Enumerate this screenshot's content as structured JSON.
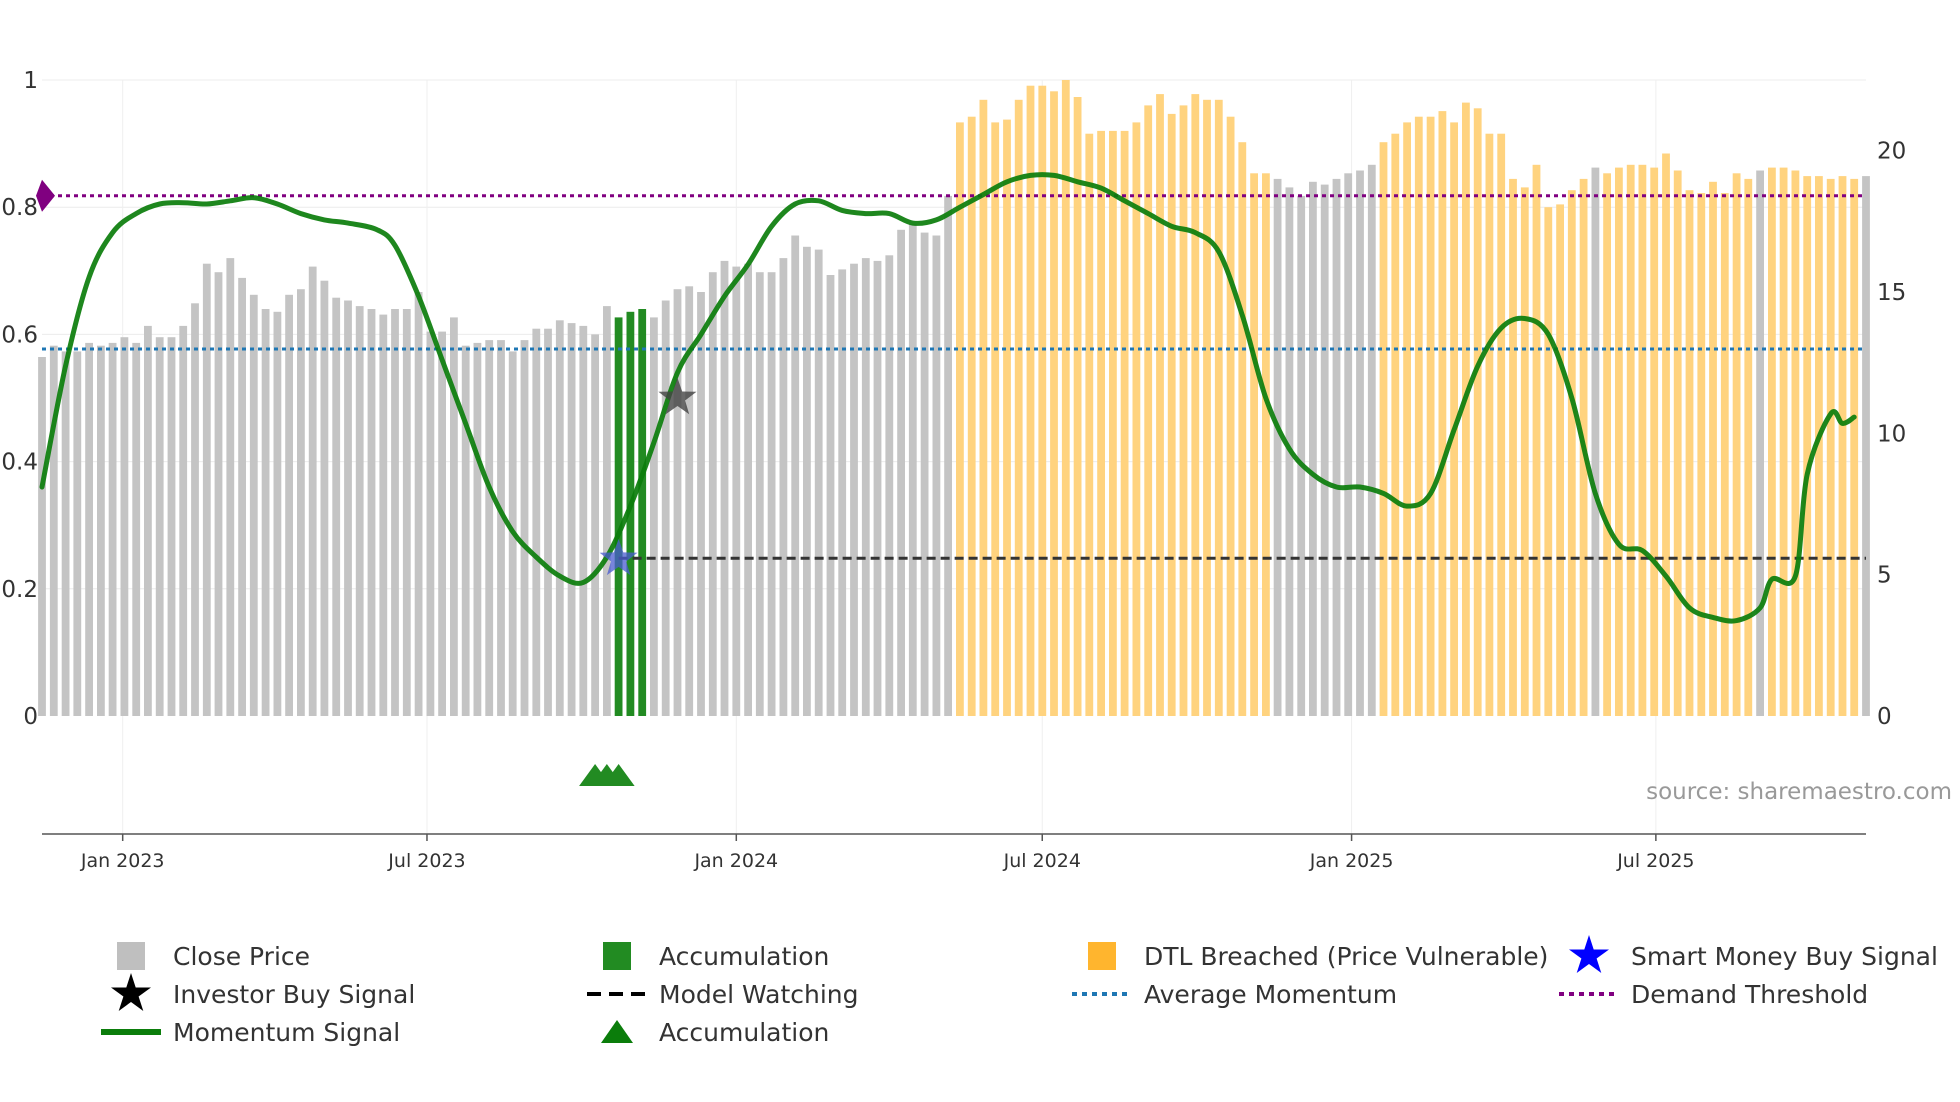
{
  "chart_data": {
    "type": "bar",
    "source": "source: sharemaestro.com",
    "left_axis": {
      "ylim": [
        0,
        1
      ],
      "ticks": [
        0,
        0.2,
        0.4,
        0.6,
        0.8,
        1
      ],
      "tick_labels": [
        "0",
        "0.2",
        "0.4",
        "0.6",
        "0.8",
        "1"
      ]
    },
    "right_axis": {
      "ylim": [
        0,
        22.5
      ],
      "ticks": [
        0,
        5,
        10,
        15,
        20
      ],
      "tick_labels": [
        "0",
        "5",
        "10",
        "15",
        "20"
      ]
    },
    "x_axis": {
      "start": "2022-11-14",
      "end": "2025-11-03",
      "ticks": [
        {
          "date": "2023-01-01",
          "label": "Jan 2023"
        },
        {
          "date": "2023-07-01",
          "label": "Jul 2023"
        },
        {
          "date": "2024-01-01",
          "label": "Jan 2024"
        },
        {
          "date": "2024-07-01",
          "label": "Jul 2024"
        },
        {
          "date": "2025-01-01",
          "label": "Jan 2025"
        },
        {
          "date": "2025-07-01",
          "label": "Jul 2025"
        }
      ]
    },
    "price_series": {
      "name": "Close Price",
      "unit": "right axis",
      "start": "2022-11-14",
      "interval_days": 7,
      "values": [
        12.7,
        13.1,
        12.9,
        12.9,
        13.2,
        13.1,
        13.2,
        13.4,
        13.2,
        13.8,
        13.4,
        13.4,
        13.8,
        14.6,
        16.0,
        15.7,
        16.2,
        15.5,
        14.9,
        14.4,
        14.3,
        14.9,
        15.1,
        15.9,
        15.4,
        14.8,
        14.7,
        14.5,
        14.4,
        14.2,
        14.4,
        14.4,
        15.0,
        13.6,
        13.6,
        14.1,
        13.1,
        13.2,
        13.3,
        13.3,
        12.9,
        13.3,
        13.7,
        13.7,
        14.0,
        13.9,
        13.8,
        13.5,
        14.5,
        14.1,
        14.3,
        14.4,
        14.1,
        14.7,
        15.1,
        15.2,
        15.0,
        15.7,
        16.1,
        15.9,
        16.0,
        15.7,
        15.7,
        16.2,
        17.0,
        16.6,
        16.5,
        15.6,
        15.8,
        16.0,
        16.2,
        16.1,
        16.3,
        17.2,
        17.4,
        17.1,
        17.0,
        18.4,
        21.0,
        21.2,
        21.8,
        21.0,
        21.1,
        21.8,
        22.3,
        22.3,
        22.1,
        22.5,
        21.9,
        20.6,
        20.7,
        20.7,
        20.7,
        21.0,
        21.6,
        22.0,
        21.3,
        21.6,
        22.0,
        21.8,
        21.8,
        21.2,
        20.3,
        19.2,
        19.2,
        19.0,
        18.7,
        18.4,
        18.9,
        18.8,
        19.0,
        19.2,
        19.3,
        19.5,
        20.3,
        20.6,
        21.0,
        21.2,
        21.2,
        21.4,
        21.0,
        21.7,
        21.5,
        20.6,
        20.6,
        19.0,
        18.7,
        19.5,
        18.0,
        18.1,
        18.6,
        19.0,
        19.4,
        19.2,
        19.4,
        19.5,
        19.5,
        19.4,
        19.9,
        19.3,
        18.6,
        18.5,
        18.9,
        18.5,
        19.2,
        19.0,
        19.3,
        19.4,
        19.4,
        19.3,
        19.1,
        19.1,
        19.0,
        19.1,
        19.0,
        19.1
      ]
    },
    "bar_color_groups": {
      "Accumulation": [
        49,
        50,
        51
      ],
      "DTL Breached (Price Vulnerable)": [
        78,
        79,
        80,
        81,
        82,
        83,
        84,
        85,
        86,
        87,
        88,
        89,
        90,
        91,
        92,
        93,
        94,
        95,
        96,
        97,
        98,
        99,
        100,
        101,
        102,
        103,
        104,
        114,
        115,
        116,
        117,
        118,
        119,
        120,
        121,
        122,
        123,
        124,
        125,
        126,
        127,
        128,
        129,
        130,
        131,
        133,
        134,
        135,
        136,
        137,
        138,
        139,
        140,
        141,
        142,
        143,
        144,
        145,
        147,
        148,
        149,
        150,
        151,
        152,
        153,
        154
      ]
    },
    "momentum_signal": {
      "name": "Momentum Signal",
      "unit": "left axis",
      "points": [
        [
          "2022-11-14",
          0.36
        ],
        [
          "2022-11-28",
          0.55
        ],
        [
          "2022-12-12",
          0.69
        ],
        [
          "2022-12-26",
          0.76
        ],
        [
          "2023-01-09",
          0.79
        ],
        [
          "2023-01-23",
          0.805
        ],
        [
          "2023-02-06",
          0.807
        ],
        [
          "2023-02-20",
          0.805
        ],
        [
          "2023-03-06",
          0.81
        ],
        [
          "2023-03-20",
          0.815
        ],
        [
          "2023-04-03",
          0.805
        ],
        [
          "2023-04-17",
          0.79
        ],
        [
          "2023-05-01",
          0.78
        ],
        [
          "2023-05-15",
          0.775
        ],
        [
          "2023-06-01",
          0.765
        ],
        [
          "2023-06-12",
          0.74
        ],
        [
          "2023-06-26",
          0.66
        ],
        [
          "2023-07-10",
          0.56
        ],
        [
          "2023-07-24",
          0.46
        ],
        [
          "2023-08-07",
          0.36
        ],
        [
          "2023-08-21",
          0.29
        ],
        [
          "2023-09-04",
          0.25
        ],
        [
          "2023-09-18",
          0.22
        ],
        [
          "2023-10-02",
          0.21
        ],
        [
          "2023-10-16",
          0.25
        ],
        [
          "2023-10-30",
          0.33
        ],
        [
          "2023-11-13",
          0.43
        ],
        [
          "2023-11-27",
          0.54
        ],
        [
          "2023-12-11",
          0.6
        ],
        [
          "2023-12-25",
          0.66
        ],
        [
          "2024-01-08",
          0.71
        ],
        [
          "2024-01-22",
          0.77
        ],
        [
          "2024-02-05",
          0.805
        ],
        [
          "2024-02-19",
          0.81
        ],
        [
          "2024-03-04",
          0.795
        ],
        [
          "2024-03-18",
          0.79
        ],
        [
          "2024-04-01",
          0.79
        ],
        [
          "2024-04-15",
          0.775
        ],
        [
          "2024-04-29",
          0.78
        ],
        [
          "2024-05-13",
          0.8
        ],
        [
          "2024-05-27",
          0.82
        ],
        [
          "2024-06-10",
          0.84
        ],
        [
          "2024-06-24",
          0.85
        ],
        [
          "2024-07-08",
          0.85
        ],
        [
          "2024-07-22",
          0.84
        ],
        [
          "2024-08-05",
          0.83
        ],
        [
          "2024-08-19",
          0.81
        ],
        [
          "2024-09-02",
          0.79
        ],
        [
          "2024-09-16",
          0.77
        ],
        [
          "2024-09-30",
          0.76
        ],
        [
          "2024-10-14",
          0.73
        ],
        [
          "2024-10-28",
          0.63
        ],
        [
          "2024-11-11",
          0.5
        ],
        [
          "2024-11-25",
          0.42
        ],
        [
          "2024-12-09",
          0.38
        ],
        [
          "2024-12-23",
          0.36
        ],
        [
          "2025-01-06",
          0.36
        ],
        [
          "2025-01-20",
          0.35
        ],
        [
          "2025-02-03",
          0.33
        ],
        [
          "2025-02-17",
          0.35
        ],
        [
          "2025-03-03",
          0.45
        ],
        [
          "2025-03-17",
          0.55
        ],
        [
          "2025-03-31",
          0.61
        ],
        [
          "2025-04-14",
          0.625
        ],
        [
          "2025-04-28",
          0.6
        ],
        [
          "2025-05-12",
          0.5
        ],
        [
          "2025-05-26",
          0.35
        ],
        [
          "2025-06-09",
          0.27
        ],
        [
          "2025-06-23",
          0.26
        ],
        [
          "2025-07-07",
          0.22
        ],
        [
          "2025-07-21",
          0.17
        ],
        [
          "2025-08-04",
          0.155
        ],
        [
          "2025-08-18",
          0.15
        ],
        [
          "2025-09-01",
          0.17
        ],
        [
          "2025-09-08",
          0.215
        ],
        [
          "2025-09-22",
          0.22
        ],
        [
          "2025-09-29",
          0.38
        ],
        [
          "2025-10-13",
          0.475
        ],
        [
          "2025-10-20",
          0.46
        ],
        [
          "2025-10-27",
          0.47
        ]
      ]
    },
    "average_momentum": {
      "name": "Average Momentum",
      "value": 0.577
    },
    "demand_threshold": {
      "name": "Demand Threshold",
      "value": 0.818
    },
    "model_watching": {
      "name": "Model Watching",
      "value": 0.248,
      "from": "2023-10-23",
      "to": "2025-11-03"
    },
    "investor_buy_signal": {
      "name": "Investor Buy Signal",
      "date": "2023-11-27",
      "value": 0.5
    },
    "smart_money_buy_signal": {
      "name": "Smart Money Buy Signal",
      "date": "2023-10-23",
      "value": 0.247
    },
    "accumulation_markers": {
      "name": "Accumulation",
      "dates": [
        "2023-10-09",
        "2023-10-16",
        "2023-10-23"
      ]
    },
    "colors": {
      "close_price": "#c4c4c4",
      "accumulation": "#228b22",
      "dtl": "#ffd37f",
      "momentum": "#0b7d0b",
      "average_momentum": "#1f77b4",
      "demand_threshold": "#800080",
      "model_watching": "#333333",
      "investor_star": "#444444",
      "smart_money_star": "#4a5bd0"
    },
    "legend": [
      {
        "label": "Close Price",
        "icon": "square",
        "color": "#bfbfbf"
      },
      {
        "label": "Accumulation",
        "icon": "square",
        "color": "#228b22"
      },
      {
        "label": "DTL Breached (Price Vulnerable)",
        "icon": "square",
        "color": "#ffb52e"
      },
      {
        "label": "Smart Money Buy Signal",
        "icon": "star",
        "color": "#0000ff"
      },
      {
        "label": "Investor Buy Signal",
        "icon": "star",
        "color": "#000000"
      },
      {
        "label": "Model Watching",
        "icon": "dashed-line",
        "color": "#000000"
      },
      {
        "label": "Average Momentum",
        "icon": "dotted-line",
        "color": "#1f77b4"
      },
      {
        "label": "Demand Threshold",
        "icon": "dotted-line",
        "color": "#800080"
      },
      {
        "label": "Momentum Signal",
        "icon": "line",
        "color": "#0b7d0b"
      },
      {
        "label": "Accumulation",
        "icon": "triangle",
        "color": "#0b7d0b"
      }
    ]
  }
}
